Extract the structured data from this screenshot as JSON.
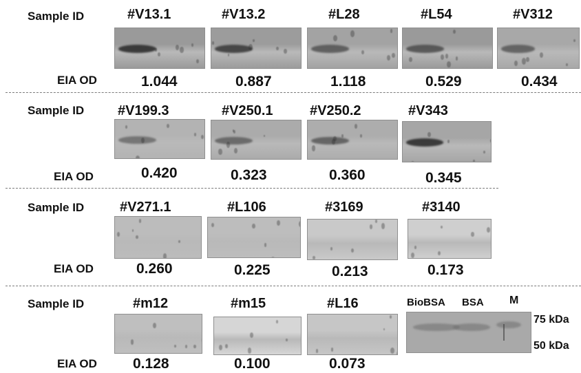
{
  "labels": {
    "sample_id": "Sample ID",
    "eia_od": "EIA OD"
  },
  "rows": [
    {
      "samples": [
        {
          "id": "#V13.1",
          "od": "1.044",
          "tone": "#9a9a9a",
          "band": 0.85
        },
        {
          "id": "#V13.2",
          "od": "0.887",
          "tone": "#9c9c9c",
          "band": 0.75
        },
        {
          "id": "#L28",
          "od": "1.118",
          "tone": "#a3a3a3",
          "band": 0.55
        },
        {
          "id": "#L54",
          "od": "0.529",
          "tone": "#9a9a9a",
          "band": 0.6
        },
        {
          "id": "#V312",
          "od": "0.434",
          "tone": "#a8a8a8",
          "band": 0.5
        }
      ]
    },
    {
      "samples": [
        {
          "id": "#V199.3",
          "od": "0.420",
          "tone": "#b3b3b3",
          "band": 0.35
        },
        {
          "id": "#V250.1",
          "od": "0.323",
          "tone": "#ababab",
          "band": 0.45
        },
        {
          "id": "#V250.2",
          "od": "0.360",
          "tone": "#adadad",
          "band": 0.5
        },
        {
          "id": "#V343",
          "od": "0.345",
          "tone": "#a6a6a6",
          "band": 0.85
        }
      ]
    },
    {
      "samples": [
        {
          "id": "#V271.1",
          "od": "0.260",
          "tone": "#bcbcbc",
          "band": 0
        },
        {
          "id": "#L106",
          "od": "0.225",
          "tone": "#bdbdbd",
          "band": 0
        },
        {
          "id": "#3169",
          "od": "0.213",
          "tone": "#c9c9c9",
          "band": 0
        },
        {
          "id": "#3140",
          "od": "0.173",
          "tone": "#cfcfcf",
          "band": 0
        }
      ]
    },
    {
      "samples": [
        {
          "id": "#m12",
          "od": "0.128",
          "tone": "#bfbfbf",
          "band": 0
        },
        {
          "id": "#m15",
          "od": "0.100",
          "tone": "#d6d6d6",
          "band": 0
        },
        {
          "id": "#L16",
          "od": "0.073",
          "tone": "#c6c6c6",
          "band": 0
        }
      ]
    }
  ],
  "control_blot": {
    "lanes": [
      "BioBSA",
      "BSA",
      "M"
    ],
    "markers": [
      "75 kDa",
      "50 kDa"
    ],
    "tone": "#a9a9a9"
  }
}
